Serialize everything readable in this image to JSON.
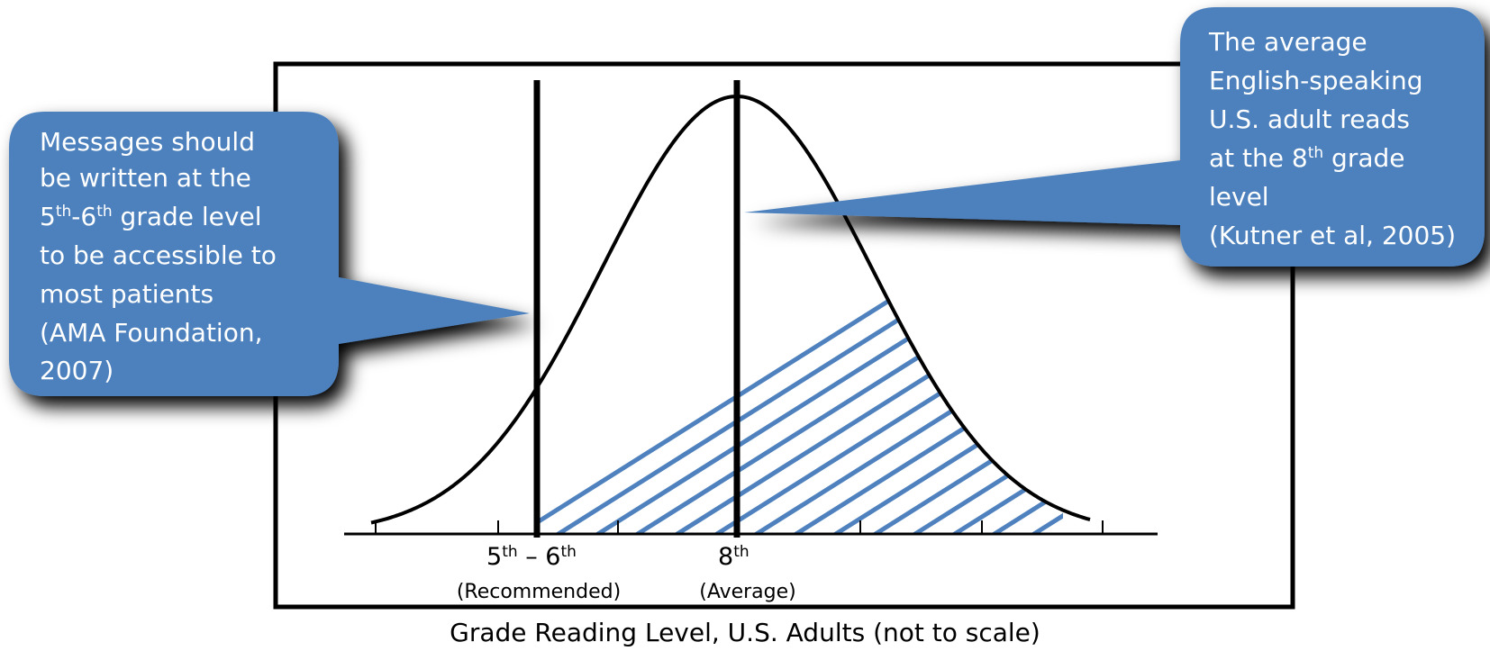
{
  "colors": {
    "callout_fill": "#4e81bd",
    "callout_text": "#ffffff",
    "hatch": "#4e81bd",
    "curve": "#000000",
    "frame": "#000000"
  },
  "left_callout": {
    "line1": "Messages should",
    "line2": "be written at the",
    "line3_pre": "5",
    "line3_sup1": "th",
    "line3_mid": "-6",
    "line3_sup2": "th",
    "line3_post": " grade level",
    "line4": "to be accessible to",
    "line5": "most patients",
    "line6": "(AMA Foundation,",
    "line7": "2007)"
  },
  "right_callout": {
    "line1": "The average",
    "line2": "English-speaking",
    "line3": "U.S. adult reads",
    "line4_pre": "at the 8",
    "line4_sup": "th",
    "line4_post": " grade",
    "line5": "level",
    "line6": "(Kutner  et al, 2005)"
  },
  "markers": {
    "recommended_pre": "5",
    "recommended_sup1": "th",
    "recommended_mid": " – 6",
    "recommended_sup2": "th",
    "recommended_caption": "(Recommended)",
    "average_pre": "8",
    "average_sup": "th",
    "average_caption": "(Average)"
  },
  "x_axis_label": "Grade Reading Level, U.S. Adults (not to scale)"
}
